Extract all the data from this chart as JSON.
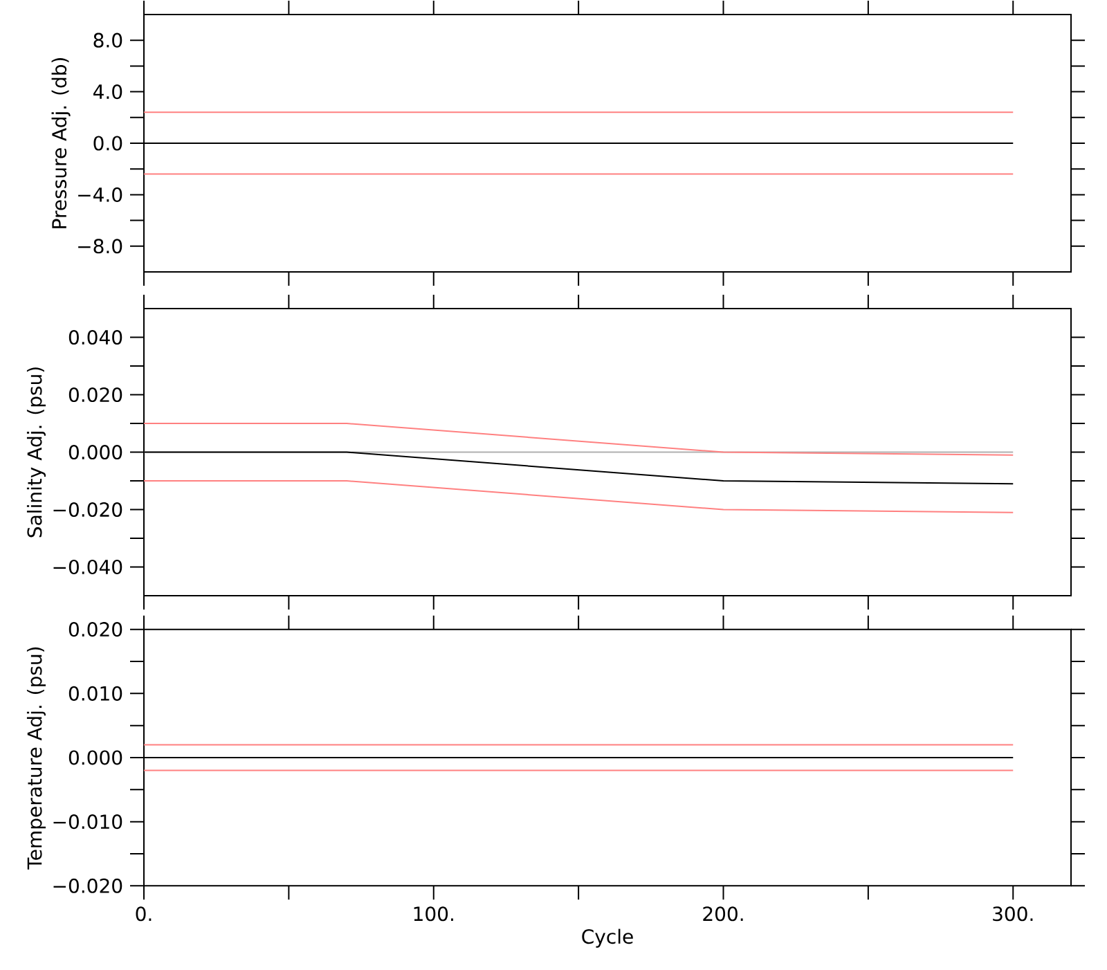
{
  "chart_data": [
    {
      "type": "line",
      "ylabel": "Pressure Adj. (db)",
      "tick_labels": "y",
      "x": [
        0,
        300
      ],
      "xlim": [
        0,
        320
      ],
      "xticks": [
        {
          "value": 0,
          "label": null
        },
        {
          "value": 50,
          "label": null
        },
        {
          "value": 100,
          "label": null
        },
        {
          "value": 150,
          "label": null
        },
        {
          "value": 200,
          "label": null
        },
        {
          "value": 250,
          "label": null
        },
        {
          "value": 300,
          "label": null
        }
      ],
      "ylim": [
        -10,
        10
      ],
      "yticks": [
        {
          "value": -8,
          "label": "−8.0"
        },
        {
          "value": -6,
          "label": null
        },
        {
          "value": -4,
          "label": "−4.0"
        },
        {
          "value": -2,
          "label": null
        },
        {
          "value": 0,
          "label": "0.0"
        },
        {
          "value": 2,
          "label": null
        },
        {
          "value": 4,
          "label": "4.0"
        },
        {
          "value": 6,
          "label": null
        },
        {
          "value": 8,
          "label": "8.0"
        }
      ],
      "series": [
        {
          "color": "#ff8080",
          "values": [
            2.4,
            2.4
          ]
        },
        {
          "color": "#000000",
          "values": [
            0,
            0
          ]
        },
        {
          "color": "#ff8080",
          "values": [
            -2.4,
            -2.4
          ]
        }
      ]
    },
    {
      "type": "line",
      "ylabel": "Salinity Adj. (psu)",
      "tick_labels": "y",
      "x": [
        0,
        70,
        200,
        300
      ],
      "xlim": [
        0,
        320
      ],
      "xticks": [
        {
          "value": 0,
          "label": null
        },
        {
          "value": 50,
          "label": null
        },
        {
          "value": 100,
          "label": null
        },
        {
          "value": 150,
          "label": null
        },
        {
          "value": 200,
          "label": null
        },
        {
          "value": 250,
          "label": null
        },
        {
          "value": 300,
          "label": null
        }
      ],
      "ylim": [
        -0.05,
        0.05
      ],
      "yticks": [
        {
          "value": -0.04,
          "label": "−0.040"
        },
        {
          "value": -0.03,
          "label": null
        },
        {
          "value": -0.02,
          "label": "−0.020"
        },
        {
          "value": -0.01,
          "label": null
        },
        {
          "value": 0,
          "label": "0.000"
        },
        {
          "value": 0.01,
          "label": null
        },
        {
          "value": 0.02,
          "label": "0.020"
        },
        {
          "value": 0.03,
          "label": null
        },
        {
          "value": 0.04,
          "label": "0.040"
        }
      ],
      "series": [
        {
          "color": "#b0b0b0",
          "values": [
            0,
            0,
            0,
            0
          ]
        },
        {
          "color": "#ff8080",
          "values": [
            0.01,
            0.01,
            0,
            -0.001
          ]
        },
        {
          "color": "#000000",
          "values": [
            0,
            0,
            -0.01,
            -0.011
          ]
        },
        {
          "color": "#ff8080",
          "values": [
            -0.01,
            -0.01,
            -0.02,
            -0.021
          ]
        }
      ]
    },
    {
      "type": "line",
      "ylabel": "Temperature Adj. (psu)",
      "xlabel": "Cycle",
      "x": [
        0,
        300
      ],
      "xlim": [
        0,
        320
      ],
      "xticks": [
        {
          "value": 0,
          "label": "0."
        },
        {
          "value": 50,
          "label": null
        },
        {
          "value": 100,
          "label": "100."
        },
        {
          "value": 150,
          "label": null
        },
        {
          "value": 200,
          "label": "200."
        },
        {
          "value": 250,
          "label": null
        },
        {
          "value": 300,
          "label": "300."
        }
      ],
      "ylim": [
        -0.02,
        0.02
      ],
      "yticks": [
        {
          "value": -0.02,
          "label": "−0.020"
        },
        {
          "value": -0.015,
          "label": null
        },
        {
          "value": -0.01,
          "label": "−0.010"
        },
        {
          "value": -0.005,
          "label": null
        },
        {
          "value": 0,
          "label": "0.000"
        },
        {
          "value": 0.005,
          "label": null
        },
        {
          "value": 0.01,
          "label": "0.010"
        },
        {
          "value": 0.015,
          "label": null
        },
        {
          "value": 0.02,
          "label": "0.020"
        }
      ],
      "series": [
        {
          "color": "#ff8080",
          "values": [
            0.002,
            0.002
          ]
        },
        {
          "color": "#000000",
          "values": [
            0,
            0
          ]
        },
        {
          "color": "#ff8080",
          "values": [
            -0.002,
            -0.002
          ]
        }
      ]
    }
  ]
}
